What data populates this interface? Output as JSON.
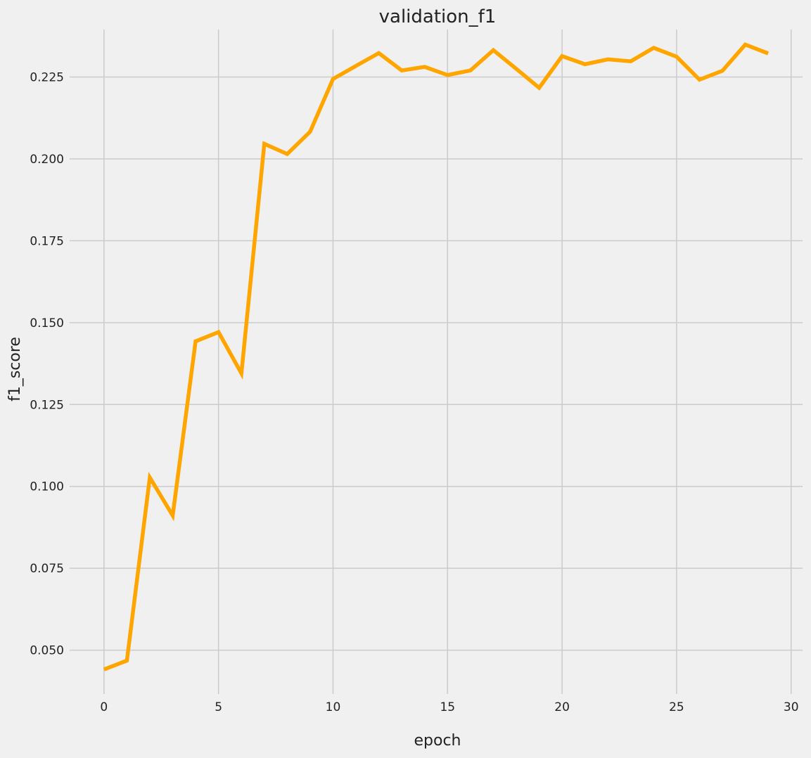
{
  "chart_data": {
    "type": "line",
    "title": "validation_f1",
    "xlabel": "epoch",
    "ylabel": "f1_score",
    "xlim": [
      -1.5,
      30.5
    ],
    "ylim": [
      0.0366,
      0.2395
    ],
    "grid": true,
    "line_color": "#ffa500",
    "background_color": "#f0f0f0",
    "grid_color": "#cbcbcb",
    "x_ticks": [
      0,
      5,
      10,
      15,
      20,
      25,
      30
    ],
    "x_tick_labels": [
      "0",
      "5",
      "10",
      "15",
      "20",
      "25",
      "30"
    ],
    "y_ticks": [
      0.05,
      0.075,
      0.1,
      0.125,
      0.15,
      0.175,
      0.2,
      0.225
    ],
    "y_tick_labels": [
      "0.050",
      "0.075",
      "0.100",
      "0.125",
      "0.150",
      "0.175",
      "0.200",
      "0.225"
    ],
    "series": [
      {
        "x": [
          0,
          1,
          2,
          3,
          4,
          5,
          6,
          7,
          8,
          9,
          10,
          11,
          12,
          13,
          14,
          15,
          16,
          17,
          18,
          19,
          20,
          21,
          22,
          23,
          24,
          25,
          26,
          27,
          28,
          29
        ],
        "y": [
          0.0441,
          0.0468,
          0.1027,
          0.0911,
          0.1443,
          0.1471,
          0.1345,
          0.2046,
          0.2015,
          0.2083,
          0.2244,
          0.2284,
          0.2323,
          0.227,
          0.2281,
          0.2256,
          0.227,
          0.2332,
          0.2275,
          0.2217,
          0.2314,
          0.2289,
          0.2304,
          0.2298,
          0.2339,
          0.2312,
          0.2242,
          0.2269,
          0.2349,
          0.2322
        ]
      }
    ]
  }
}
